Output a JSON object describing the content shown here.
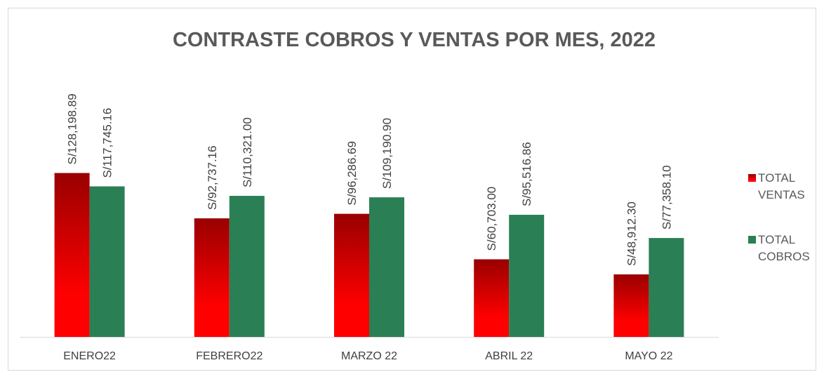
{
  "chart_data": {
    "type": "bar",
    "title": "CONTRASTE COBROS Y VENTAS POR MES, 2022",
    "categories": [
      "ENERO22",
      "FEBRERO22",
      "MARZO 22",
      "ABRIL 22",
      "MAYO 22"
    ],
    "series": [
      {
        "name": "TOTAL VENTAS",
        "color": "#ff0000",
        "values": [
          128198.89,
          92737.16,
          96286.69,
          60703.0,
          48912.3
        ],
        "value_labels": [
          "S/128,198.89",
          "S/92,737.16",
          "S/96,286.69",
          "S/60,703.00",
          "S/48,912.30"
        ]
      },
      {
        "name": "TOTAL COBROS",
        "color": "#2a7f54",
        "values": [
          117745.16,
          110321.0,
          109190.9,
          95516.86,
          77358.1
        ],
        "value_labels": [
          "S/117,745.16",
          "S/110,321.00",
          "S/109,190.90",
          "S/95,516.86",
          "S/77,358.10"
        ]
      }
    ],
    "ylim": [
      0,
      140000
    ],
    "legend": "right"
  }
}
